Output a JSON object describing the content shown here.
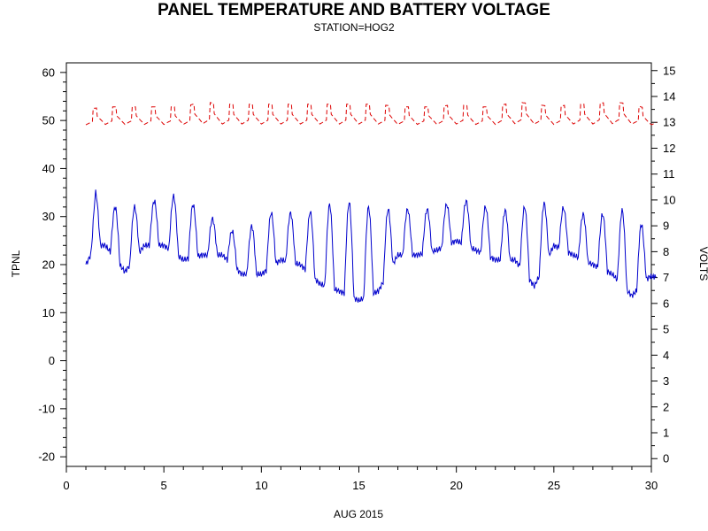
{
  "chart_data": {
    "type": "line",
    "title": "PANEL TEMPERATURE AND BATTERY VOLTAGE",
    "subtitle": "STATION=HOG2",
    "xlabel": "AUG 2015",
    "ylabel_left": "TPNL",
    "ylabel_right": "VOLTS",
    "x_range": [
      0,
      30
    ],
    "x_ticks": [
      0,
      5,
      10,
      15,
      20,
      25,
      30
    ],
    "y_left_range": [
      -22,
      62
    ],
    "y_left_ticks": [
      -20,
      -10,
      0,
      10,
      20,
      30,
      40,
      50,
      60
    ],
    "y_right_range": [
      -0.3,
      15.3
    ],
    "y_right_ticks": [
      0,
      1,
      2,
      3,
      4,
      5,
      6,
      7,
      8,
      9,
      10,
      11,
      12,
      13,
      14,
      15
    ],
    "grid": false,
    "series": [
      {
        "axis": "left",
        "color": "#0000cc",
        "style": "solid",
        "daily": [
          {
            "day": 1,
            "min": 20,
            "max": 22
          },
          {
            "day": 1.5,
            "min": 24,
            "max": 35
          },
          {
            "day": 2,
            "min": 24,
            "max": 32
          },
          {
            "day": 3,
            "min": 18.5,
            "max": 32
          },
          {
            "day": 4,
            "min": 24,
            "max": 32
          },
          {
            "day": 5,
            "min": 24,
            "max": 34.5
          },
          {
            "day": 6,
            "min": 21,
            "max": 34
          },
          {
            "day": 7,
            "min": 22,
            "max": 31
          },
          {
            "day": 8,
            "min": 22,
            "max": 28
          },
          {
            "day": 9,
            "min": 18,
            "max": 26
          },
          {
            "day": 10,
            "min": 18,
            "max": 30
          },
          {
            "day": 11,
            "min": 21,
            "max": 31.5
          },
          {
            "day": 12,
            "min": 20,
            "max": 30
          },
          {
            "day": 13,
            "min": 16,
            "max": 32
          },
          {
            "day": 14,
            "min": 14.5,
            "max": 33
          },
          {
            "day": 15,
            "min": 12.5,
            "max": 33
          },
          {
            "day": 16,
            "min": 14.5,
            "max": 31
          },
          {
            "day": 17,
            "min": 22,
            "max": 32
          },
          {
            "day": 18,
            "min": 22,
            "max": 31
          },
          {
            "day": 19,
            "min": 23,
            "max": 32
          },
          {
            "day": 20,
            "min": 25,
            "max": 33
          },
          {
            "day": 21,
            "min": 23,
            "max": 33.5
          },
          {
            "day": 22,
            "min": 21,
            "max": 30.5
          },
          {
            "day": 23,
            "min": 21,
            "max": 32
          },
          {
            "day": 24,
            "min": 15.5,
            "max": 32
          },
          {
            "day": 25,
            "min": 24,
            "max": 33.5
          },
          {
            "day": 26,
            "min": 22,
            "max": 30
          },
          {
            "day": 27,
            "min": 20,
            "max": 31
          },
          {
            "day": 28,
            "min": 18,
            "max": 30
          },
          {
            "day": 29,
            "min": 13.5,
            "max": 32.5
          },
          {
            "day": 29.9,
            "min": 17.5,
            "max": 25
          }
        ]
      },
      {
        "axis": "right",
        "color": "#dd0000",
        "style": "dashed",
        "daily": [
          {
            "day": 1,
            "min": 12.8,
            "max": 13.5
          },
          {
            "day": 2,
            "min": 12.8,
            "max": 13.6
          },
          {
            "day": 3,
            "min": 12.8,
            "max": 13.6
          },
          {
            "day": 4,
            "min": 12.8,
            "max": 13.6
          },
          {
            "day": 5,
            "min": 12.8,
            "max": 13.6
          },
          {
            "day": 6,
            "min": 12.8,
            "max": 13.6
          },
          {
            "day": 7,
            "min": 12.8,
            "max": 13.8
          },
          {
            "day": 8,
            "min": 12.8,
            "max": 13.7
          },
          {
            "day": 9,
            "min": 12.8,
            "max": 13.7
          },
          {
            "day": 10,
            "min": 12.8,
            "max": 13.7
          },
          {
            "day": 11,
            "min": 12.8,
            "max": 13.7
          },
          {
            "day": 12,
            "min": 12.8,
            "max": 13.7
          },
          {
            "day": 13,
            "min": 12.8,
            "max": 13.7
          },
          {
            "day": 14,
            "min": 12.8,
            "max": 13.7
          },
          {
            "day": 15,
            "min": 12.8,
            "max": 13.7
          },
          {
            "day": 16,
            "min": 12.8,
            "max": 13.7
          },
          {
            "day": 17,
            "min": 12.8,
            "max": 13.6
          },
          {
            "day": 18,
            "min": 12.8,
            "max": 13.6
          },
          {
            "day": 19,
            "min": 12.8,
            "max": 13.6
          },
          {
            "day": 20,
            "min": 12.8,
            "max": 13.7
          },
          {
            "day": 21,
            "min": 12.8,
            "max": 13.6
          },
          {
            "day": 22,
            "min": 12.8,
            "max": 13.6
          },
          {
            "day": 23,
            "min": 12.8,
            "max": 13.8
          },
          {
            "day": 24,
            "min": 12.8,
            "max": 13.7
          },
          {
            "day": 25,
            "min": 12.8,
            "max": 13.6
          },
          {
            "day": 26,
            "min": 12.8,
            "max": 13.7
          },
          {
            "day": 27,
            "min": 12.8,
            "max": 13.7
          },
          {
            "day": 28,
            "min": 12.8,
            "max": 13.8
          },
          {
            "day": 29,
            "min": 12.8,
            "max": 13.7
          },
          {
            "day": 29.9,
            "min": 12.8,
            "max": 13.5
          }
        ]
      }
    ]
  }
}
